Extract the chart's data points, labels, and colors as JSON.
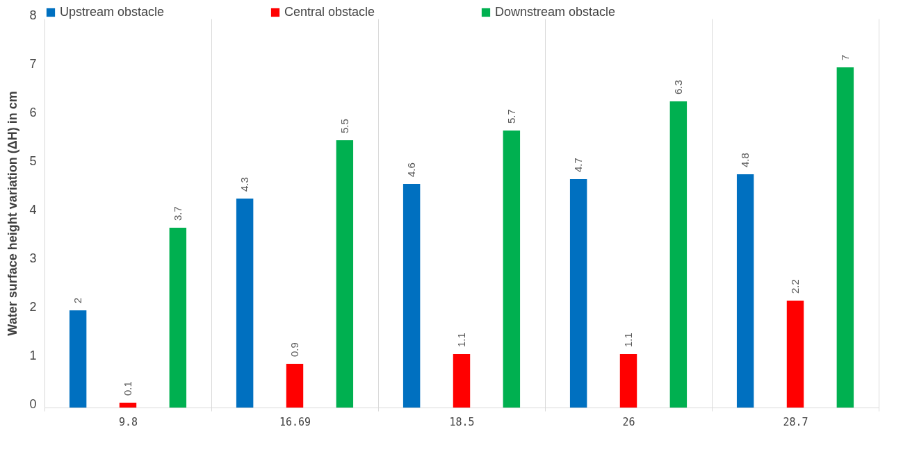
{
  "chart_data": {
    "type": "bar",
    "ylabel": "Water surface height variation (ΔH)  in cm",
    "categories": [
      "9.8",
      "16.69",
      "18.5",
      "26",
      "28.7"
    ],
    "series": [
      {
        "name": "Upstream obstacle",
        "color": "#0070c0",
        "values": [
          2,
          4.3,
          4.6,
          4.7,
          4.8
        ]
      },
      {
        "name": "Central obstacle",
        "color": "#ff0000",
        "values": [
          0.1,
          0.9,
          1.1,
          1.1,
          2.2
        ]
      },
      {
        "name": "Downstream obstacle",
        "color": "#00b050",
        "values": [
          3.7,
          5.5,
          5.7,
          6.3,
          7
        ]
      }
    ],
    "ylim": [
      0,
      8
    ],
    "yticks": [
      0,
      1,
      2,
      3,
      4,
      5,
      6,
      7,
      8
    ],
    "grid": "x",
    "legend": "top",
    "data_labels": true
  }
}
